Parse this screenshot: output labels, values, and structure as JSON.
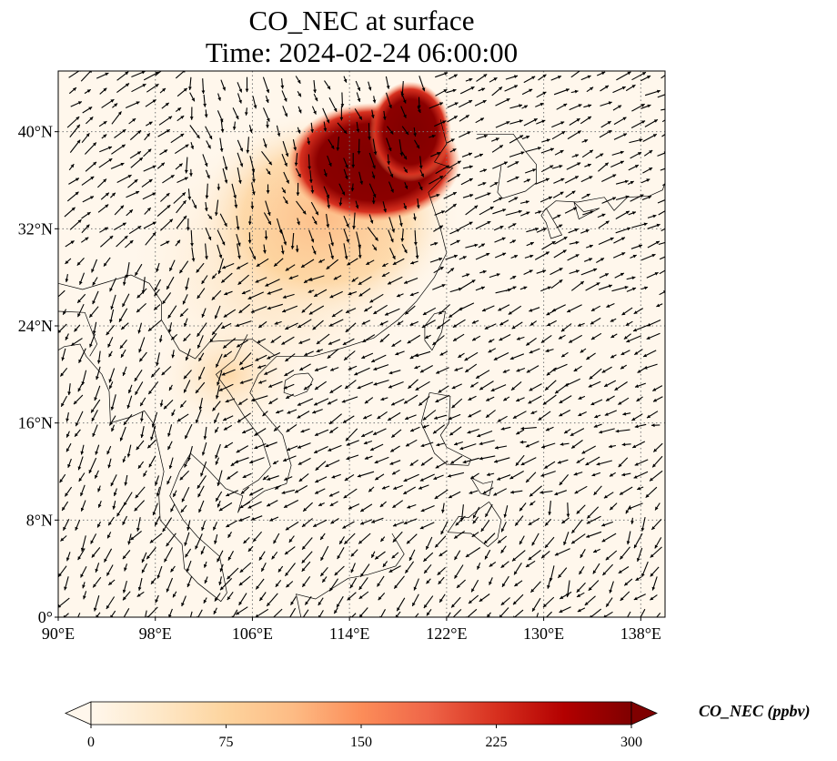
{
  "title": {
    "line1": "CO_NEC at surface",
    "line2": "Time: 2024-02-24 06:00:00"
  },
  "map": {
    "projection": "PlateCarree",
    "lon_range": [
      90,
      140
    ],
    "lat_range": [
      0,
      45
    ],
    "gridlines": true,
    "gridline_style": "dotted gray",
    "lon_ticks": [
      {
        "value": 90,
        "label": "90°E"
      },
      {
        "value": 98,
        "label": "98°E"
      },
      {
        "value": 106,
        "label": "106°E"
      },
      {
        "value": 114,
        "label": "114°E"
      },
      {
        "value": 122,
        "label": "122°E"
      },
      {
        "value": 130,
        "label": "130°E"
      },
      {
        "value": 138,
        "label": "138°E"
      }
    ],
    "lat_ticks": [
      {
        "value": 0,
        "label": "0°"
      },
      {
        "value": 8,
        "label": "8°N"
      },
      {
        "value": 16,
        "label": "16°N"
      },
      {
        "value": 24,
        "label": "24°N"
      },
      {
        "value": 32,
        "label": "32°N"
      },
      {
        "value": 40,
        "label": "40°N"
      }
    ],
    "plume_centers": [
      {
        "lon": 115.5,
        "lat": 37.8,
        "value": 300
      },
      {
        "lon": 119.0,
        "lat": 39.5,
        "value": 300
      },
      {
        "lon": 112.0,
        "lat": 32.0,
        "value": 120
      },
      {
        "lon": 108.0,
        "lat": 28.0,
        "value": 80
      }
    ],
    "wind_field": "quiver arrows (black)"
  },
  "colorbar": {
    "label": "CO_NEC (ppbv)",
    "colormap": "OrRd",
    "range": [
      0,
      300
    ],
    "extend": "both",
    "colors": [
      "#fff7ec",
      "#fee8c8",
      "#fdd49e",
      "#fdbb84",
      "#fc8d59",
      "#ef6548",
      "#d7301f",
      "#b30000",
      "#7f0000"
    ],
    "ticks": [
      {
        "value": 0,
        "label": "0"
      },
      {
        "value": 75,
        "label": "75"
      },
      {
        "value": 150,
        "label": "150"
      },
      {
        "value": 225,
        "label": "225"
      },
      {
        "value": 300,
        "label": "300"
      }
    ]
  }
}
